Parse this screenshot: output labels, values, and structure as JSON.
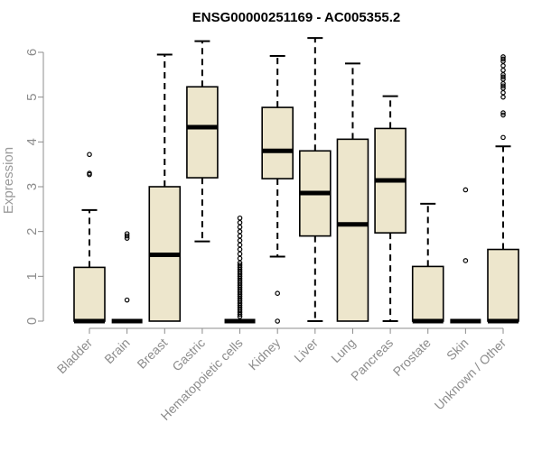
{
  "chart_data": {
    "type": "boxplot",
    "title": "ENSG00000251169 - AC005355.2",
    "ylabel": "Expression",
    "xlabel": "",
    "ylim": [
      0,
      6
    ],
    "yticks": [
      0,
      1,
      2,
      3,
      4,
      5,
      6
    ],
    "grid": false,
    "legend": "none",
    "colors": {
      "box_fill": "#ede6cc",
      "box_stroke": "#000000",
      "axis": "#8c8c8c"
    },
    "categories": [
      "Bladder",
      "Brain",
      "Breast",
      "Gastric",
      "Hematopoietic cells",
      "Kidney",
      "Liver",
      "Lung",
      "Pancreas",
      "Prostate",
      "Skin",
      "Unknown / Other"
    ],
    "boxes": [
      {
        "q1": 0,
        "median": 0,
        "q3": 1.2,
        "whisker_low": 0,
        "whisker_high": 2.48,
        "outliers": [
          3.27,
          3.3,
          3.72
        ]
      },
      {
        "q1": 0,
        "median": 0,
        "q3": 0,
        "whisker_low": 0,
        "whisker_high": 0,
        "outliers": [
          0.47,
          1.85,
          1.9,
          1.95
        ]
      },
      {
        "q1": 0,
        "median": 1.48,
        "q3": 3.0,
        "whisker_low": 0,
        "whisker_high": 5.95,
        "outliers": []
      },
      {
        "q1": 3.2,
        "median": 4.33,
        "q3": 5.23,
        "whisker_low": 1.78,
        "whisker_high": 6.25,
        "outliers": []
      },
      {
        "q1": 0,
        "median": 0,
        "q3": 0,
        "whisker_low": 0,
        "whisker_high": 0,
        "outliers": [
          0.1,
          0.15,
          0.2,
          0.25,
          0.3,
          0.35,
          0.4,
          0.45,
          0.5,
          0.55,
          0.6,
          0.65,
          0.7,
          0.75,
          0.8,
          0.85,
          0.9,
          0.95,
          1.0,
          1.05,
          1.1,
          1.15,
          1.2,
          1.25,
          1.3,
          1.4,
          1.5,
          1.6,
          1.7,
          1.8,
          1.9,
          2.0,
          2.1,
          2.2,
          2.3
        ]
      },
      {
        "q1": 3.18,
        "median": 3.8,
        "q3": 4.77,
        "whisker_low": 1.44,
        "whisker_high": 5.92,
        "outliers": [
          0.0,
          0.62
        ]
      },
      {
        "q1": 1.9,
        "median": 2.86,
        "q3": 3.8,
        "whisker_low": 0,
        "whisker_high": 6.32,
        "outliers": []
      },
      {
        "q1": 0,
        "median": 2.16,
        "q3": 4.06,
        "whisker_low": 0,
        "whisker_high": 5.75,
        "outliers": []
      },
      {
        "q1": 1.97,
        "median": 3.14,
        "q3": 4.3,
        "whisker_low": 0,
        "whisker_high": 5.02,
        "outliers": []
      },
      {
        "q1": 0,
        "median": 0,
        "q3": 1.22,
        "whisker_low": 0,
        "whisker_high": 2.62,
        "outliers": []
      },
      {
        "q1": 0,
        "median": 0,
        "q3": 0,
        "whisker_low": 0,
        "whisker_high": 0,
        "outliers": [
          1.35,
          2.93
        ]
      },
      {
        "q1": 0,
        "median": 0,
        "q3": 1.6,
        "whisker_low": 0,
        "whisker_high": 3.9,
        "outliers": [
          4.1,
          4.6,
          4.65,
          5.0,
          5.1,
          5.2,
          5.25,
          5.3,
          5.4,
          5.45,
          5.5,
          5.6,
          5.7,
          5.8,
          5.85,
          5.9
        ]
      }
    ]
  }
}
